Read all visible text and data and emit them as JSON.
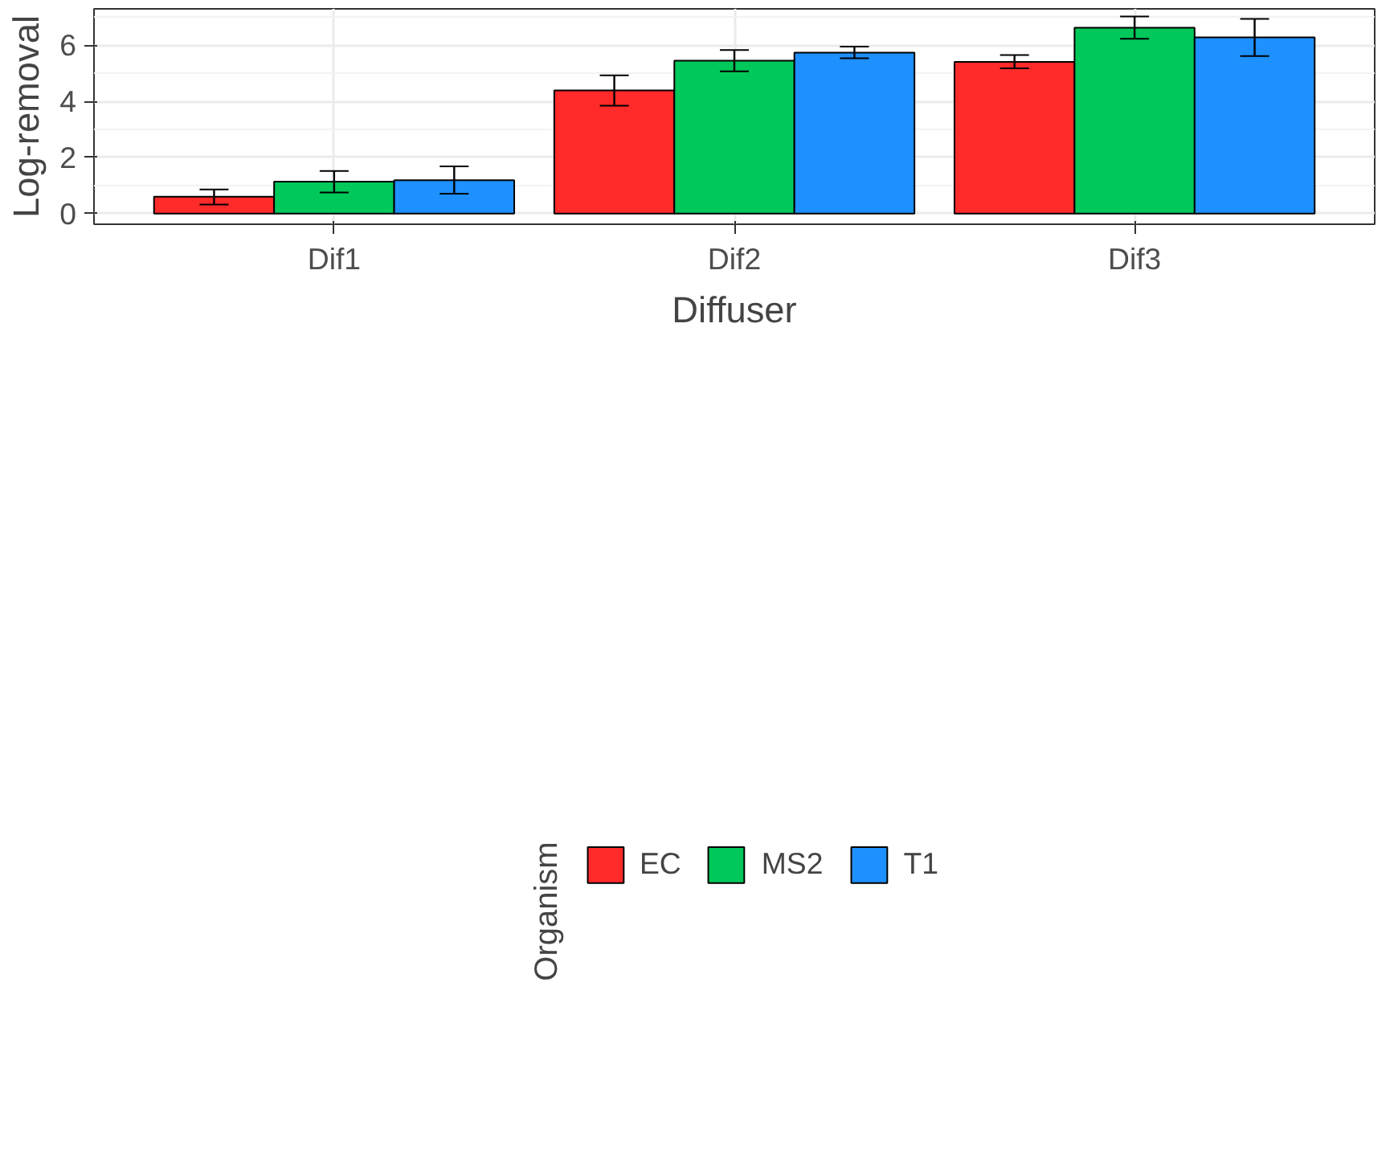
{
  "chart_data": {
    "type": "bar",
    "xlabel": "Diffuser",
    "ylabel": "Log-removal",
    "legend_title": "Organism",
    "categories": [
      "Dif1",
      "Dif2",
      "Dif3"
    ],
    "series": [
      {
        "name": "EC",
        "color": "#ff2a2a",
        "values": [
          0.6,
          4.39,
          5.41
        ],
        "errors": [
          [
            0.32,
            0.86
          ],
          [
            3.85,
            4.93
          ],
          [
            5.18,
            5.65
          ]
        ]
      },
      {
        "name": "MS2",
        "color": "#00c85a",
        "values": [
          1.14,
          5.45,
          6.63
        ],
        "errors": [
          [
            0.75,
            1.52
          ],
          [
            5.07,
            5.83
          ],
          [
            6.23,
            7.03
          ]
        ]
      },
      {
        "name": "T1",
        "color": "#1e90ff",
        "values": [
          1.19,
          5.74,
          6.28
        ],
        "errors": [
          [
            0.71,
            1.68
          ],
          [
            5.54,
            5.95
          ],
          [
            5.62,
            6.94
          ]
        ]
      }
    ],
    "ylim": [
      -0.38,
      7.3
    ],
    "yticks": [
      0,
      2,
      4,
      6
    ],
    "grid": true,
    "legend": "bottom"
  }
}
